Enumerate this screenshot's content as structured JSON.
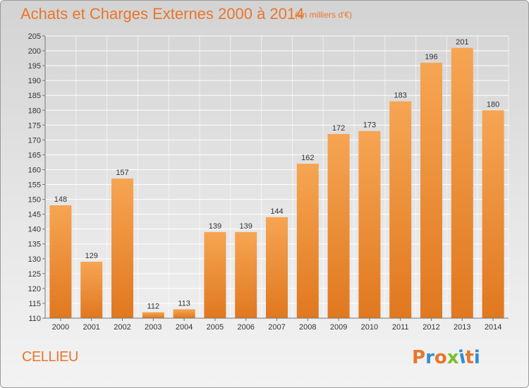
{
  "header": {
    "title": "Achats et Charges Externes 2000 à 2014",
    "subtitle": "(en milliers d'€)"
  },
  "footer": {
    "place": "CELLIEU",
    "logo": "Proxiti"
  },
  "colors": {
    "accent": "#e8762c",
    "bar_top": "#f6a553",
    "bar_bottom": "#e0781f",
    "logo_letters": [
      "#e8762c",
      "#2e8fd4",
      "#e8762c",
      "#7bbf2c",
      "#2e8fd4",
      "#e8762c",
      "#2e8fd4"
    ]
  },
  "chart_data": {
    "type": "bar",
    "title": "Achats et Charges Externes 2000 à 2014",
    "subtitle": "(en milliers d'€)",
    "categories": [
      "2000",
      "2001",
      "2002",
      "2003",
      "2004",
      "2005",
      "2006",
      "2007",
      "2008",
      "2009",
      "2010",
      "2011",
      "2012",
      "2013",
      "2014"
    ],
    "values": [
      148,
      129,
      157,
      112,
      113,
      139,
      139,
      144,
      162,
      172,
      173,
      183,
      196,
      201,
      180
    ],
    "ylim": [
      110,
      205
    ],
    "yticks": [
      110,
      115,
      120,
      125,
      130,
      135,
      140,
      145,
      150,
      155,
      160,
      165,
      170,
      175,
      180,
      185,
      190,
      195,
      200,
      205
    ],
    "grid": true,
    "data_labels": true
  }
}
